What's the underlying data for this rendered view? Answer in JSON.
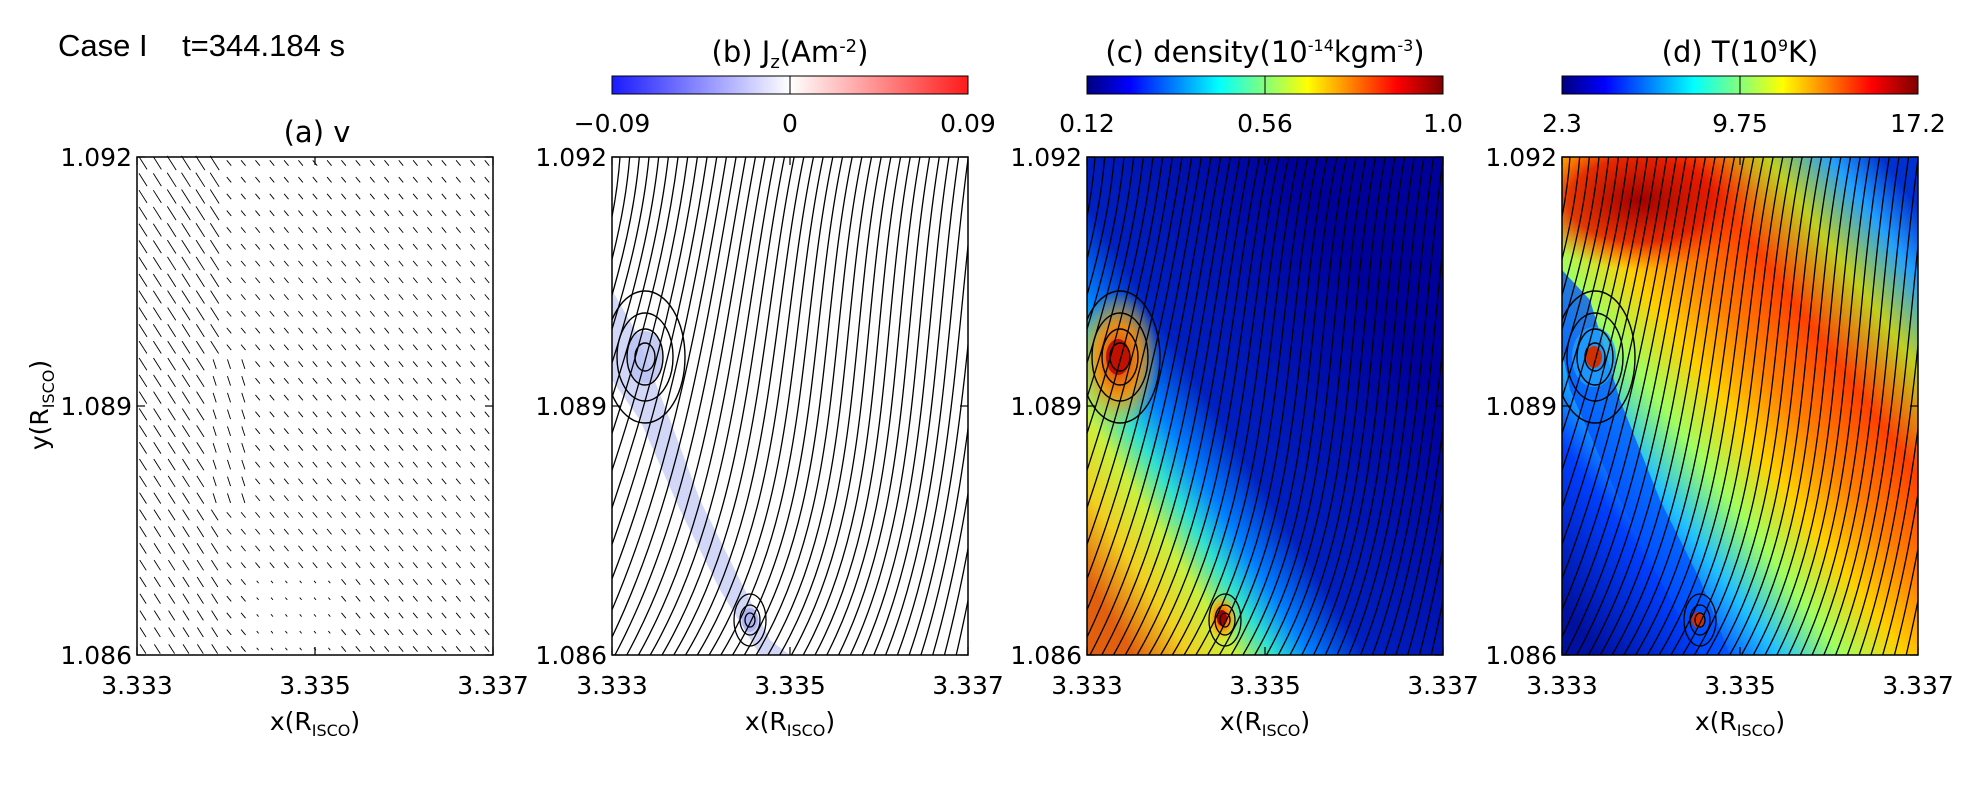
{
  "header": {
    "case_label": "Case I",
    "time_label": "t=344.184 s"
  },
  "axes": {
    "x_ticks": [
      "3.333",
      "3.335",
      "3.337"
    ],
    "y_ticks": [
      "1.092",
      "1.089",
      "1.086"
    ],
    "x_range": [
      3.333,
      3.337
    ],
    "y_range": [
      1.086,
      1.092
    ],
    "xlabel_main": "x(R",
    "xlabel_sub": "ISCO",
    "xlabel_close": ")",
    "ylabel_main": "y(R",
    "ylabel_sub": "ISCO",
    "ylabel_close": ")"
  },
  "colors": {
    "jz_map": [
      "#1a1aff",
      "#ffffff",
      "#ff1a1a"
    ],
    "jet_map": [
      "#00007f",
      "#0000ff",
      "#00ffff",
      "#ffff00",
      "#ff0000",
      "#7f0000"
    ]
  },
  "chart_data": [
    {
      "type": "vector-field",
      "panel": "a",
      "title": "(a) v",
      "xlim": [
        3.333,
        3.337
      ],
      "ylim": [
        1.086,
        1.092
      ]
    },
    {
      "type": "heatmap",
      "panel": "b",
      "title_pre": "(b) J",
      "title_sub": "z",
      "title_post": "(Am",
      "title_sup": "-2",
      "title_close": ")",
      "colorbar_ticks": [
        "−0.09",
        "0",
        "0.09"
      ],
      "colorbar_range": [
        -0.09,
        0.09
      ],
      "colormap": "blue-white-red",
      "overlay": "magnetic field lines",
      "xlim": [
        3.333,
        3.337
      ],
      "ylim": [
        1.086,
        1.092
      ]
    },
    {
      "type": "heatmap",
      "panel": "c",
      "title_pre": "(c) density(10",
      "title_sup": "-14",
      "title_post": "kgm",
      "title_sup2": "-3",
      "title_close": ")",
      "colorbar_ticks": [
        "0.12",
        "0.56",
        "1.0"
      ],
      "colorbar_range": [
        0.12,
        1.0
      ],
      "colormap": "jet",
      "overlay": "magnetic field lines",
      "xlim": [
        3.333,
        3.337
      ],
      "ylim": [
        1.086,
        1.092
      ]
    },
    {
      "type": "heatmap",
      "panel": "d",
      "title_pre": "(d) T(10",
      "title_sup": "9",
      "title_post": "K)",
      "colorbar_ticks": [
        "2.3",
        "9.75",
        "17.2"
      ],
      "colorbar_range": [
        2.3,
        17.2
      ],
      "colormap": "jet",
      "overlay": "magnetic field lines",
      "xlim": [
        3.333,
        3.337
      ],
      "ylim": [
        1.086,
        1.092
      ]
    }
  ]
}
